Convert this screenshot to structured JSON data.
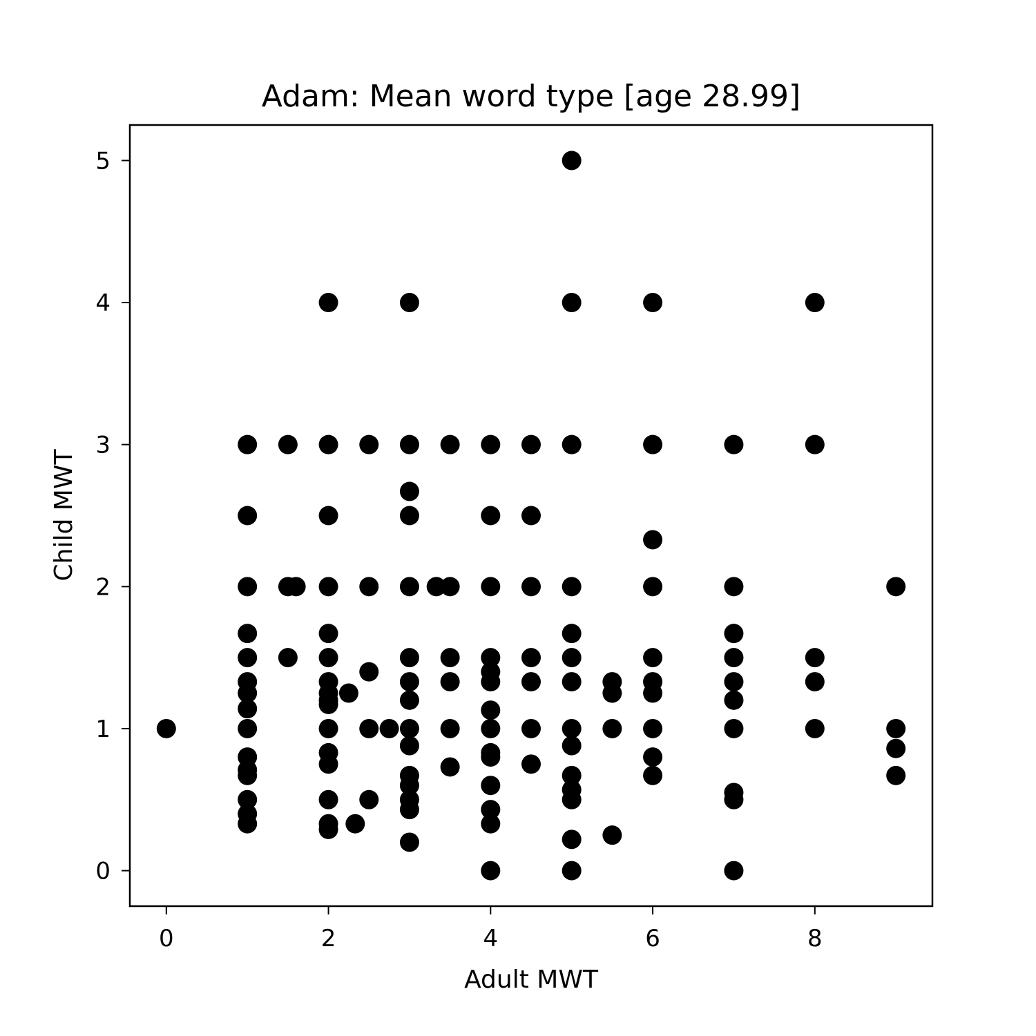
{
  "chart_data": {
    "type": "scatter",
    "title": "Adam: Mean word type [age 28.99]",
    "xlabel": "Adult MWT",
    "ylabel": "Child MWT",
    "xlim": [
      -0.45,
      9.45
    ],
    "ylim": [
      -0.25,
      5.25
    ],
    "xticks": [
      0,
      2,
      4,
      6,
      8
    ],
    "yticks": [
      0,
      1,
      2,
      3,
      4,
      5
    ],
    "grid": false,
    "marker_color": "#000000",
    "points": [
      [
        0,
        1
      ],
      [
        1,
        3
      ],
      [
        1,
        2.5
      ],
      [
        1,
        2
      ],
      [
        1,
        1.67
      ],
      [
        1,
        1.5
      ],
      [
        1,
        1.33
      ],
      [
        1,
        1.25
      ],
      [
        1,
        1.14
      ],
      [
        1,
        1
      ],
      [
        1,
        0.8
      ],
      [
        1,
        0.71
      ],
      [
        1,
        0.67
      ],
      [
        1,
        0.5
      ],
      [
        1,
        0.4
      ],
      [
        1,
        0.33
      ],
      [
        1.5,
        3
      ],
      [
        1.5,
        2
      ],
      [
        1.5,
        1.5
      ],
      [
        1.6,
        2
      ],
      [
        2,
        4
      ],
      [
        2,
        3
      ],
      [
        2,
        2.5
      ],
      [
        2,
        2
      ],
      [
        2,
        1.67
      ],
      [
        2,
        1.5
      ],
      [
        2,
        1.33
      ],
      [
        2,
        1.25
      ],
      [
        2,
        1.2
      ],
      [
        2,
        1.17
      ],
      [
        2,
        1
      ],
      [
        2,
        0.83
      ],
      [
        2,
        0.75
      ],
      [
        2,
        0.5
      ],
      [
        2,
        0.33
      ],
      [
        2,
        0.29
      ],
      [
        2.25,
        1.25
      ],
      [
        2.33,
        0.33
      ],
      [
        2.5,
        3
      ],
      [
        2.5,
        2
      ],
      [
        2.5,
        1.4
      ],
      [
        2.5,
        1
      ],
      [
        2.5,
        0.5
      ],
      [
        2.75,
        1
      ],
      [
        3,
        4
      ],
      [
        3,
        3
      ],
      [
        3,
        2.67
      ],
      [
        3,
        2.5
      ],
      [
        3,
        2
      ],
      [
        3,
        1.5
      ],
      [
        3,
        1.33
      ],
      [
        3,
        1.2
      ],
      [
        3,
        1
      ],
      [
        3,
        0.88
      ],
      [
        3,
        0.67
      ],
      [
        3,
        0.6
      ],
      [
        3,
        0.5
      ],
      [
        3,
        0.43
      ],
      [
        3,
        0.2
      ],
      [
        3.33,
        2
      ],
      [
        3.5,
        3
      ],
      [
        3.5,
        2
      ],
      [
        3.5,
        1.5
      ],
      [
        3.5,
        1.33
      ],
      [
        3.5,
        1
      ],
      [
        3.5,
        0.73
      ],
      [
        4,
        3
      ],
      [
        4,
        2.5
      ],
      [
        4,
        2
      ],
      [
        4,
        1.5
      ],
      [
        4,
        1.4
      ],
      [
        4,
        1.33
      ],
      [
        4,
        1.13
      ],
      [
        4,
        1
      ],
      [
        4,
        0.83
      ],
      [
        4,
        0.8
      ],
      [
        4,
        0.6
      ],
      [
        4,
        0.43
      ],
      [
        4,
        0.33
      ],
      [
        4,
        0
      ],
      [
        4.5,
        3
      ],
      [
        4.5,
        2.5
      ],
      [
        4.5,
        2
      ],
      [
        4.5,
        1.5
      ],
      [
        4.5,
        1.33
      ],
      [
        4.5,
        1
      ],
      [
        4.5,
        0.75
      ],
      [
        5,
        5
      ],
      [
        5,
        4
      ],
      [
        5,
        3
      ],
      [
        5,
        2
      ],
      [
        5,
        1.67
      ],
      [
        5,
        1.5
      ],
      [
        5,
        1.33
      ],
      [
        5,
        1
      ],
      [
        5,
        0.88
      ],
      [
        5,
        0.67
      ],
      [
        5,
        0.57
      ],
      [
        5,
        0.5
      ],
      [
        5,
        0.22
      ],
      [
        5,
        0
      ],
      [
        5.5,
        1.33
      ],
      [
        5.5,
        1.25
      ],
      [
        5.5,
        1
      ],
      [
        5.5,
        0.25
      ],
      [
        6,
        4
      ],
      [
        6,
        3
      ],
      [
        6,
        2.33
      ],
      [
        6,
        2
      ],
      [
        6,
        1.5
      ],
      [
        6,
        1.33
      ],
      [
        6,
        1.25
      ],
      [
        6,
        1
      ],
      [
        6,
        0.8
      ],
      [
        6,
        0.67
      ],
      [
        7,
        3
      ],
      [
        7,
        2
      ],
      [
        7,
        1.67
      ],
      [
        7,
        1.5
      ],
      [
        7,
        1.33
      ],
      [
        7,
        1.2
      ],
      [
        7,
        1
      ],
      [
        7,
        0.55
      ],
      [
        7,
        0.5
      ],
      [
        7,
        0
      ],
      [
        8,
        4
      ],
      [
        8,
        3
      ],
      [
        8,
        1.5
      ],
      [
        8,
        1.33
      ],
      [
        8,
        1
      ],
      [
        9,
        2
      ],
      [
        9,
        1
      ],
      [
        9,
        0.86
      ],
      [
        9,
        0.67
      ]
    ]
  }
}
